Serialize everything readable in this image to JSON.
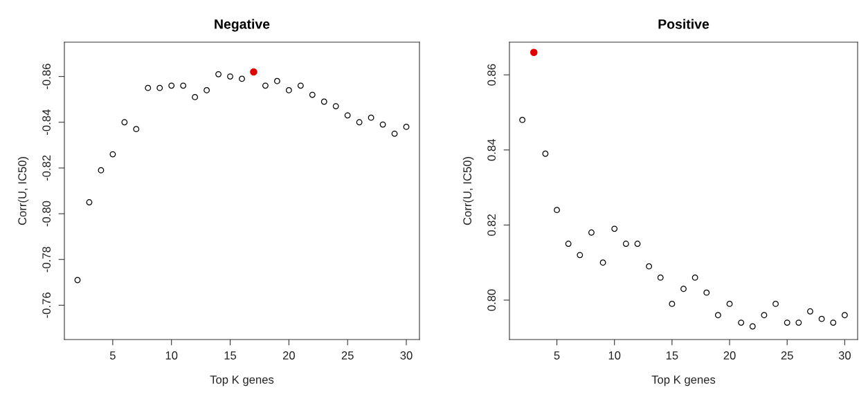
{
  "chart_data": [
    {
      "type": "scatter",
      "title": "Negative",
      "xlabel": "Top K genes",
      "ylabel": "Corr(U, IC50)",
      "xlim": [
        0.88,
        31.12
      ],
      "ylim": [
        -0.745,
        -0.875
      ],
      "xticks": [
        5,
        10,
        15,
        20,
        25,
        30
      ],
      "yticks": [
        -0.76,
        -0.78,
        {
          "value": -0.8,
          "label": "-0.80"
        },
        -0.82,
        -0.84,
        -0.86
      ],
      "marker": "circle",
      "series": [
        {
          "color": "#000000",
          "x": [
            2,
            3,
            4,
            5,
            6,
            7,
            8,
            9,
            10,
            11,
            12,
            13,
            14,
            15,
            16,
            18,
            19,
            20,
            21,
            22,
            23,
            24,
            25,
            26,
            27,
            28,
            29,
            30
          ],
          "values": [
            -0.771,
            -0.805,
            -0.819,
            -0.826,
            -0.84,
            -0.837,
            -0.855,
            -0.855,
            -0.856,
            -0.856,
            -0.851,
            -0.854,
            -0.861,
            -0.86,
            -0.859,
            -0.856,
            -0.858,
            -0.854,
            -0.856,
            -0.852,
            -0.849,
            -0.847,
            -0.843,
            -0.84,
            -0.842,
            -0.839,
            -0.835,
            -0.838
          ]
        },
        {
          "color": "#e00000",
          "x": [
            17
          ],
          "values": [
            -0.862
          ]
        }
      ]
    },
    {
      "type": "scatter",
      "title": "Positive",
      "xlabel": "Top K genes",
      "ylabel": "Corr(U, IC50)",
      "xlim": [
        0.88,
        31.12
      ],
      "ylim": [
        0.7895,
        0.8687
      ],
      "xticks": [
        5,
        10,
        15,
        20,
        25,
        30
      ],
      "yticks": [
        {
          "value": 0.8,
          "label": "0.80"
        },
        0.82,
        0.84,
        0.86
      ],
      "marker": "circle",
      "series": [
        {
          "color": "#000000",
          "x": [
            2,
            4,
            5,
            6,
            7,
            8,
            9,
            10,
            11,
            12,
            13,
            14,
            15,
            16,
            17,
            18,
            19,
            20,
            21,
            22,
            23,
            24,
            25,
            26,
            27,
            28,
            29,
            30
          ],
          "values": [
            0.848,
            0.839,
            0.824,
            0.815,
            0.812,
            0.818,
            0.81,
            0.819,
            0.815,
            0.815,
            0.809,
            0.806,
            0.799,
            0.803,
            0.806,
            0.802,
            0.796,
            0.799,
            0.794,
            0.793,
            0.796,
            0.799,
            0.794,
            0.794,
            0.797,
            0.795,
            0.794,
            0.796
          ]
        },
        {
          "color": "#e00000",
          "x": [
            3
          ],
          "values": [
            0.866
          ]
        }
      ]
    }
  ]
}
